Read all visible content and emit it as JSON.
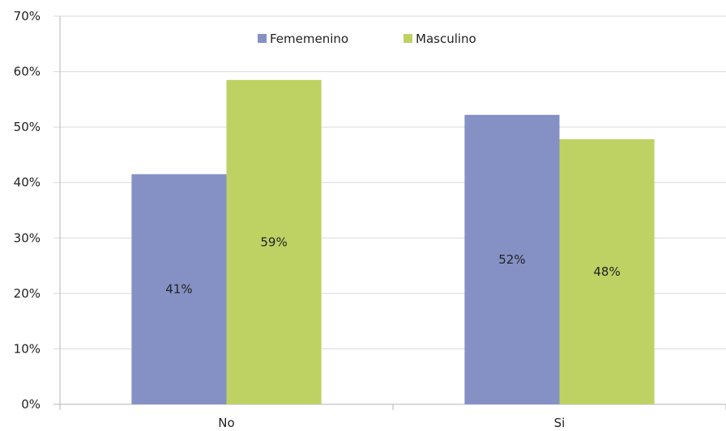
{
  "chart_data": {
    "type": "bar",
    "categories": [
      "No",
      "Si"
    ],
    "series": [
      {
        "name": "Fememenino",
        "color": "#8591c5",
        "values": [
          41.5,
          52.2
        ],
        "labels": [
          "41%",
          "52%"
        ]
      },
      {
        "name": "Masculino",
        "color": "#bdd263",
        "values": [
          58.5,
          47.8
        ],
        "labels": [
          "59%",
          "48%"
        ]
      }
    ],
    "ylim": [
      0,
      70
    ],
    "yticks": [
      0,
      10,
      20,
      30,
      40,
      50,
      60,
      70
    ],
    "ytick_labels": [
      "0%",
      "10%",
      "20%",
      "30%",
      "40%",
      "50%",
      "60%",
      "70%"
    ],
    "grid": true,
    "legend_position": "top-center",
    "title": "",
    "xlabel": "",
    "ylabel": ""
  }
}
